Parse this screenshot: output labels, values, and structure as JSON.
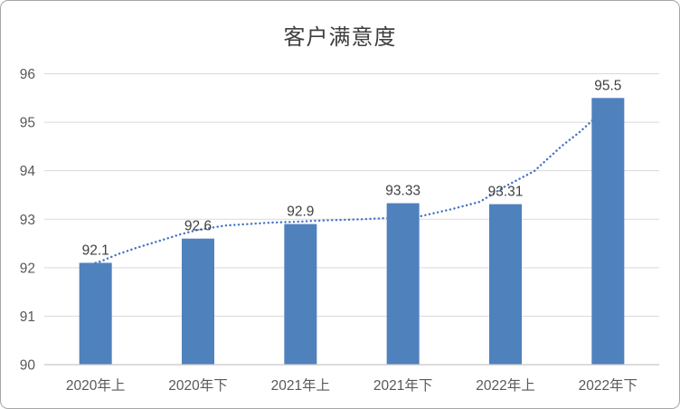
{
  "chart_data": {
    "type": "bar",
    "title": "客户满意度",
    "categories": [
      "2020年上",
      "2020年下",
      "2021年上",
      "2021年下",
      "2022年上",
      "2022年下"
    ],
    "series": [
      {
        "name": "客户满意度",
        "values": [
          92.1,
          92.6,
          92.9,
          93.33,
          93.31,
          95.5
        ]
      }
    ],
    "data_labels": [
      "92.1",
      "92.6",
      "92.9",
      "93.33",
      "93.31",
      "95.5"
    ],
    "ylim": [
      90,
      96
    ],
    "yticks": [
      90,
      91,
      92,
      93,
      94,
      95,
      96
    ],
    "grid": true,
    "legend": "none",
    "trendline": {
      "style": "dotted",
      "points": [
        [
          0.0,
          92.1
        ],
        [
          0.05,
          92.13
        ],
        [
          0.22,
          92.28
        ],
        [
          0.4,
          92.41
        ],
        [
          0.57,
          92.52
        ],
        [
          0.83,
          92.69
        ],
        [
          1.0,
          92.78
        ],
        [
          1.27,
          92.87
        ],
        [
          1.71,
          92.93
        ],
        [
          2.0,
          92.95
        ],
        [
          2.15,
          92.97
        ],
        [
          2.6,
          93.0
        ],
        [
          3.0,
          93.04
        ],
        [
          3.17,
          93.06
        ],
        [
          3.48,
          93.21
        ],
        [
          3.75,
          93.36
        ],
        [
          4.0,
          93.68
        ],
        [
          4.28,
          93.99
        ],
        [
          4.55,
          94.51
        ],
        [
          4.72,
          94.79
        ],
        [
          4.84,
          95.02
        ],
        [
          5.0,
          95.45
        ]
      ]
    },
    "colors": {
      "bar": "#4f81bd",
      "trend": "#4472c4",
      "gridline": "#d9d9d9",
      "axis": "#c6c6c6",
      "tick_label": "#595959",
      "data_label": "#3f3f3f",
      "title": "#3f3f3f"
    }
  }
}
